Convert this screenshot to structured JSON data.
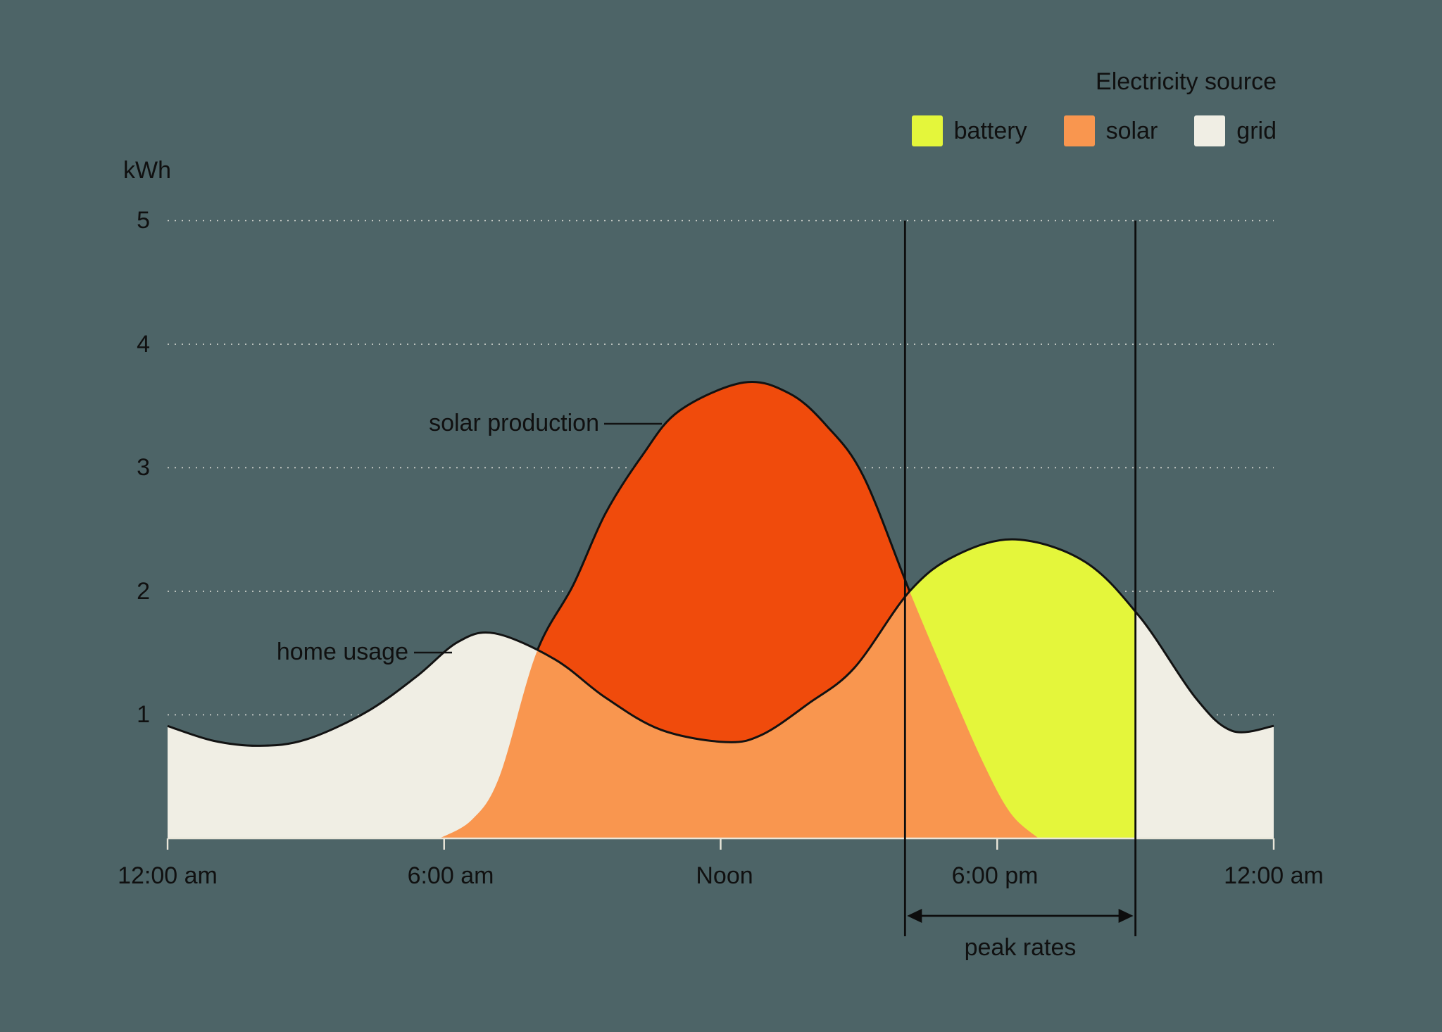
{
  "chart_data": {
    "type": "area",
    "title": "",
    "ylabel": "kWh",
    "xlabel": "",
    "ylim": [
      0,
      5
    ],
    "xlim_hours": [
      0,
      24
    ],
    "grid": "dotted horizontal gridlines at 1..5 kWh",
    "legend_position": "top-right",
    "ytick_labels": [
      "5",
      "4",
      "3",
      "2",
      "1"
    ],
    "yticks": [
      5,
      4,
      3,
      2,
      1
    ],
    "xticks": [
      {
        "t": 0,
        "label": "12:00 am"
      },
      {
        "t": 6,
        "label": "6:00 am"
      },
      {
        "t": 12,
        "label": "Noon"
      },
      {
        "t": 18,
        "label": "6:00 pm"
      },
      {
        "t": 24,
        "label": "12:00 am"
      }
    ],
    "series": [
      {
        "name": "home usage",
        "unit": "kWh",
        "points": [
          [
            0,
            0.91
          ],
          [
            1,
            0.79
          ],
          [
            2,
            0.75
          ],
          [
            3,
            0.8
          ],
          [
            4.3,
            1.02
          ],
          [
            5.4,
            1.31
          ],
          [
            6.3,
            1.59
          ],
          [
            7.1,
            1.66
          ],
          [
            8.4,
            1.45
          ],
          [
            9.5,
            1.14
          ],
          [
            10.7,
            0.88
          ],
          [
            12.1,
            0.78
          ],
          [
            12.9,
            0.84
          ],
          [
            13.9,
            1.09
          ],
          [
            14.9,
            1.38
          ],
          [
            16.1,
            2.0
          ],
          [
            17.1,
            2.29
          ],
          [
            18.4,
            2.42
          ],
          [
            19.9,
            2.24
          ],
          [
            21.1,
            1.79
          ],
          [
            22.3,
            1.14
          ],
          [
            23.1,
            0.87
          ],
          [
            24,
            0.91
          ]
        ]
      },
      {
        "name": "solar production",
        "unit": "kWh",
        "points": [
          [
            5.9,
            0
          ],
          [
            6.6,
            0.15
          ],
          [
            7.2,
            0.5
          ],
          [
            8,
            1.5
          ],
          [
            8.8,
            2.05
          ],
          [
            9.5,
            2.63
          ],
          [
            10.3,
            3.1
          ],
          [
            11.1,
            3.46
          ],
          [
            12.5,
            3.69
          ],
          [
            13.5,
            3.6
          ],
          [
            14.3,
            3.34
          ],
          [
            15.1,
            2.93
          ],
          [
            16.1,
            2.0
          ],
          [
            16.9,
            1.29
          ],
          [
            17.7,
            0.61
          ],
          [
            18.3,
            0.2
          ],
          [
            18.9,
            0
          ]
        ]
      }
    ],
    "source_segments": [
      {
        "source": "grid",
        "from_hour": 0,
        "to_hour": 8.3,
        "note": "under home usage, above/left of solar rise"
      },
      {
        "source": "solar",
        "from_hour": 5.9,
        "to_hour": 18.9,
        "note": "under min(home usage, solar production)"
      },
      {
        "source": "battery",
        "from_hour": 16.1,
        "to_hour": 21,
        "note": "under home usage right of solar tail"
      },
      {
        "source": "grid",
        "from_hour": 21,
        "to_hour": 24
      }
    ],
    "peak_rates": {
      "label": "peak rates",
      "start_hour": 16,
      "end_hour": 21
    },
    "annotations": [
      {
        "label": "solar production",
        "points_to": "solar production curve"
      },
      {
        "label": "home usage",
        "points_to": "home usage curve"
      }
    ],
    "legend": {
      "title": "Electricity source",
      "items": [
        {
          "label": "battery",
          "color": "#e4f63b"
        },
        {
          "label": "solar",
          "color": "#f9964f"
        },
        {
          "label": "grid",
          "color": "#f0eee4"
        }
      ]
    },
    "colors": {
      "background": "#4d6467",
      "battery": "#e4f63b",
      "solar_fill": "#f9964f",
      "solar_production_fill": "#f04b0c",
      "grid_fill": "#f0eee4",
      "curve_stroke": "#121212",
      "axis": "#eae7da",
      "gridline": "#efeee6",
      "peak_line": "#0d0d0d",
      "text": "#101010"
    }
  }
}
